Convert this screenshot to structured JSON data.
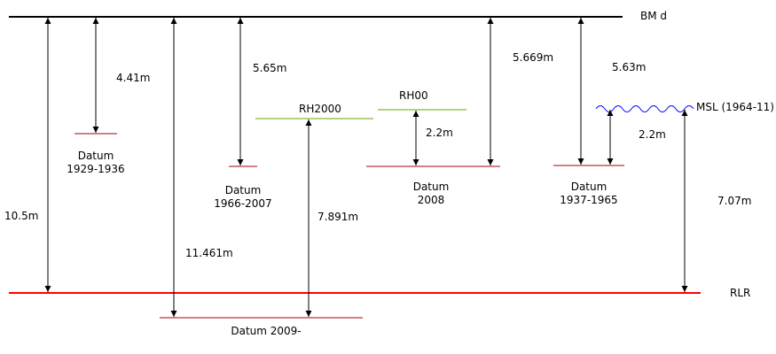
{
  "colors": {
    "reference": "#000000",
    "rlr": "#ff0000",
    "datum": "#aa0000",
    "rh": "#66aa00",
    "msl": "#0000ff",
    "arrow": "#000000"
  },
  "labels": {
    "bm": "BM d",
    "rlr": "RLR",
    "msl": "MSL (1964-11)",
    "rh2000": "RH2000",
    "rh00": "RH00",
    "datum_1929_1": "Datum",
    "datum_1929_2": "1929-1936",
    "datum_1966_1": "Datum",
    "datum_1966_2": "1966-2007",
    "datum_2008_1": "Datum",
    "datum_2008_2": "2008",
    "datum_1937_1": "Datum",
    "datum_1937_2": "1937-1965",
    "datum_2009": "Datum 2009-"
  },
  "measurements": {
    "m_4_41": "4.41m",
    "m_5_65": "5.65m",
    "m_5_669": "5.669m",
    "m_5_63": "5.63m",
    "m_10_5": "10.5m",
    "m_11_461": "11.461m",
    "m_7_891": "7.891m",
    "m_2_2_rh00": "2.2m",
    "m_2_2_msl": "2.2m",
    "m_7_07": "7.07m"
  }
}
